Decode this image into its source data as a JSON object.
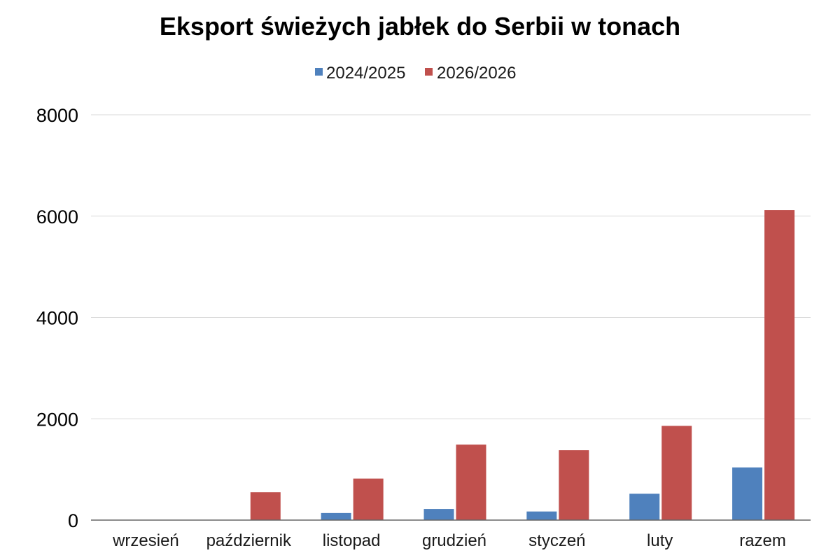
{
  "chart_data": {
    "type": "bar",
    "title": "Eksport świeżych jabłek do Serbii w tonach",
    "categories": [
      "wrzesień",
      "październik",
      "listopad",
      "grudzień",
      "styczeń",
      "luty",
      "razem"
    ],
    "series": [
      {
        "name": "2024/2025",
        "color": "#4f81bd",
        "values": [
          0,
          0,
          140,
          220,
          170,
          520,
          1040
        ]
      },
      {
        "name": "2026/2026",
        "color": "#c0504d",
        "values": [
          0,
          550,
          820,
          1490,
          1380,
          1860,
          6120
        ]
      }
    ],
    "ylim": [
      0,
      8000
    ],
    "yticks": [
      0,
      2000,
      4000,
      6000,
      8000
    ],
    "grid": true,
    "legend_position": "top-center"
  }
}
